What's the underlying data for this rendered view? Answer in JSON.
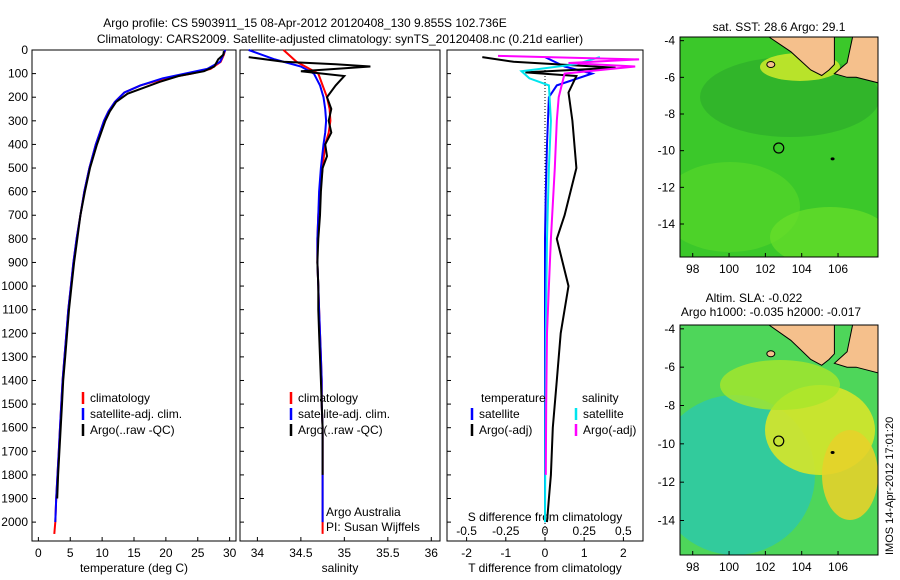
{
  "header": {
    "line1": "Argo profile: CS 5903911_15 08-Apr-2012 20120408_130 9.855S 102.736E",
    "line2": "Climatology: CARS2009. Satellite-adjusted climatology: synTS_20120408.nc (0.21d earlier)"
  },
  "footer_stamp": "IMOS 14-Apr-2012 17:01:20",
  "colors": {
    "climatology": "#ff0000",
    "satellite": "#0000ff",
    "argo": "#000000",
    "satellite_salinity": "#00e5ee",
    "argo_adj_salinity": "#ff00ff",
    "land": "#f5c08c"
  },
  "chart_data": [
    {
      "id": "temperature",
      "type": "line",
      "xlabel": "temperature (deg C)",
      "ylabel": "",
      "xlim": [
        -1,
        31
      ],
      "ylim": [
        2080,
        0
      ],
      "xticks": [
        0,
        5,
        10,
        15,
        20,
        25,
        30
      ],
      "yticks": [
        0,
        100,
        200,
        300,
        400,
        500,
        600,
        700,
        800,
        900,
        1000,
        1100,
        1200,
        1300,
        1400,
        1500,
        1600,
        1700,
        1800,
        1900,
        2000
      ],
      "legend": {
        "position": "lower-center",
        "entries": [
          "climatology",
          "satellite-adj. clim.",
          "Argo(..raw -QC)"
        ]
      },
      "series": [
        {
          "name": "climatology",
          "color": "#ff0000",
          "x": [
            29.3,
            29.1,
            28.6,
            27.0,
            24.0,
            20.0,
            16.0,
            13.5,
            12.0,
            11.0,
            10.3,
            9.0,
            8.0,
            7.2,
            6.6,
            6.0,
            5.5,
            5.1,
            4.7,
            4.4,
            4.1,
            3.8,
            3.6,
            3.4,
            3.2,
            3.0,
            2.8,
            2.65,
            2.5
          ],
          "y": [
            0,
            20,
            50,
            80,
            100,
            120,
            150,
            180,
            220,
            260,
            300,
            400,
            500,
            600,
            700,
            800,
            900,
            1000,
            1100,
            1200,
            1300,
            1400,
            1500,
            1600,
            1700,
            1800,
            1900,
            2000,
            2050
          ]
        },
        {
          "name": "satellite-adj. clim.",
          "color": "#0000ff",
          "x": [
            29.3,
            29.0,
            28.5,
            26.5,
            23.0,
            19.5,
            16.0,
            13.5,
            12.0,
            11.0,
            10.3,
            9.0,
            8.0,
            7.2,
            6.6,
            6.0,
            5.5,
            5.1,
            4.7,
            4.4,
            4.1,
            3.8,
            3.6,
            3.4,
            3.2,
            3.0,
            2.8,
            2.65
          ],
          "y": [
            0,
            20,
            50,
            80,
            100,
            120,
            150,
            180,
            220,
            260,
            300,
            400,
            500,
            600,
            700,
            800,
            900,
            1000,
            1100,
            1200,
            1300,
            1400,
            1500,
            1600,
            1700,
            1800,
            1900,
            2000
          ]
        },
        {
          "name": "Argo(..raw -QC)",
          "color": "#000000",
          "x": [
            29.1,
            29.0,
            28.2,
            27.6,
            26.0,
            22.0,
            19.0,
            16.5,
            14.0,
            12.2,
            11.2,
            10.5,
            9.2,
            8.1,
            7.3,
            6.6,
            6.1,
            5.6,
            5.2,
            4.8,
            4.5,
            4.2,
            3.9,
            3.7,
            3.5,
            3.3,
            3.1,
            2.95
          ],
          "y": [
            5,
            20,
            40,
            70,
            90,
            110,
            135,
            160,
            185,
            220,
            260,
            300,
            400,
            500,
            600,
            700,
            800,
            900,
            1000,
            1100,
            1200,
            1300,
            1400,
            1500,
            1600,
            1700,
            1800,
            1900
          ]
        }
      ]
    },
    {
      "id": "salinity",
      "type": "line",
      "xlabel": "salinity",
      "ylabel": "",
      "xlim": [
        33.8,
        36.1
      ],
      "ylim": [
        2080,
        0
      ],
      "xticks": [
        34,
        34.5,
        35,
        35.5,
        36
      ],
      "legend": {
        "position": "lower-center",
        "entries": [
          "climatology",
          "satellite-adj. clim.",
          "Argo(..raw -QC)"
        ]
      },
      "annotation": [
        "Argo Australia",
        "PI: Susan Wijffels"
      ],
      "series": [
        {
          "name": "climatology",
          "color": "#ff0000",
          "x": [
            34.3,
            34.45,
            34.6,
            34.7,
            34.75,
            34.8,
            34.83,
            34.84,
            34.82,
            34.78,
            34.75,
            34.72,
            34.7,
            34.69,
            34.69,
            34.7,
            34.71,
            34.72,
            34.73,
            34.74,
            34.74,
            34.75,
            34.75,
            34.75,
            34.75,
            34.75,
            34.75
          ],
          "y": [
            0,
            50,
            80,
            100,
            150,
            200,
            250,
            300,
            350,
            400,
            500,
            600,
            700,
            800,
            900,
            1000,
            1100,
            1200,
            1300,
            1400,
            1500,
            1600,
            1700,
            1800,
            1900,
            2000,
            2050
          ]
        },
        {
          "name": "satellite-adj. clim.",
          "color": "#0000ff",
          "x": [
            33.9,
            34.2,
            34.5,
            34.65,
            34.72,
            34.76,
            34.78,
            34.79,
            34.78,
            34.76,
            34.73,
            34.71,
            34.7,
            34.69,
            34.69,
            34.7,
            34.71,
            34.72,
            34.73,
            34.74,
            34.74,
            34.75,
            34.75,
            34.75,
            34.75,
            34.75
          ],
          "y": [
            0,
            40,
            70,
            100,
            150,
            200,
            250,
            300,
            350,
            400,
            500,
            600,
            700,
            800,
            900,
            1000,
            1100,
            1200,
            1300,
            1400,
            1500,
            1600,
            1700,
            1800,
            1900,
            2000
          ]
        },
        {
          "name": "Argo(..raw -QC)",
          "color": "#000000",
          "x": [
            33.9,
            34.3,
            34.9,
            35.3,
            34.5,
            35.0,
            34.9,
            34.8,
            34.85,
            34.82,
            34.85,
            34.78,
            34.8,
            34.75,
            34.73,
            34.72,
            34.7,
            34.69,
            34.7,
            34.7,
            34.71,
            34.72,
            34.73,
            34.74,
            34.75,
            34.75,
            34.75
          ],
          "y": [
            30,
            50,
            60,
            70,
            90,
            110,
            150,
            200,
            250,
            300,
            350,
            400,
            450,
            500,
            600,
            700,
            800,
            900,
            1000,
            1100,
            1200,
            1300,
            1400,
            1500,
            1600,
            1700,
            1800
          ]
        }
      ]
    },
    {
      "id": "difference",
      "type": "line",
      "xlabel": "T difference from climatology",
      "xlabel_top": "S difference from climatology",
      "ylabel": "",
      "xlim": [
        -2.5,
        2.5
      ],
      "ylim": [
        2080,
        0
      ],
      "xticks": [
        -2,
        -1,
        0,
        1,
        2
      ],
      "xticks_s": [
        "-0.5",
        "-0.25",
        "0",
        "0.25",
        "0.5"
      ],
      "xticks_s_values": [
        -0.5,
        -0.25,
        0,
        0.25,
        0.5
      ],
      "legend": {
        "position": "lower-center",
        "entries_temperature_title": "temperature",
        "entries_salinity_title": "salinity",
        "entries": [
          "satellite",
          "Argo(-adj)",
          "satellite",
          "Argo(-adj)"
        ]
      },
      "series": [
        {
          "name": "satellite",
          "group": "temperature",
          "color": "#0000ff",
          "x": [
            0,
            0.5,
            1.2,
            0.3,
            0.1,
            0.05,
            0.02,
            0.0,
            0.0,
            0.0,
            0.0
          ],
          "y": [
            30,
            70,
            100,
            150,
            200,
            400,
            600,
            800,
            1200,
            1600,
            2000
          ]
        },
        {
          "name": "Argo(-adj)",
          "group": "temperature",
          "color": "#000000",
          "x": [
            -1.6,
            -0.8,
            1.8,
            -0.5,
            0.8,
            0.6,
            0.7,
            0.8,
            0.5,
            0.3,
            0.6,
            0.4,
            0.3,
            0.2,
            0.15,
            0.1,
            0.05
          ],
          "y": [
            30,
            50,
            75,
            95,
            110,
            180,
            300,
            500,
            700,
            800,
            1000,
            1200,
            1400,
            1600,
            1800,
            1900,
            2000
          ]
        },
        {
          "name": "satellite",
          "group": "salinity",
          "color": "#00e5ee",
          "x": [
            1.4,
            0.8,
            -0.6,
            -0.4,
            0.1,
            0.15,
            0.1,
            0.05,
            0.02,
            0.01,
            0.0
          ],
          "y": [
            30,
            60,
            90,
            120,
            150,
            300,
            500,
            800,
            1200,
            1600,
            2000
          ]
        },
        {
          "name": "Argo(-adj)",
          "group": "salinity",
          "color": "#ff00ff",
          "x": [
            -1.2,
            2.4,
            0.6,
            2.3,
            0.5,
            0.35,
            0.3,
            0.25,
            0.15,
            0.1,
            0.05,
            0.03,
            0.02
          ],
          "y": [
            25,
            40,
            55,
            70,
            100,
            200,
            300,
            500,
            800,
            1000,
            1200,
            1500,
            1800
          ]
        }
      ]
    },
    {
      "id": "sst_map",
      "type": "heatmap",
      "title": "sat. SST: 28.6 Argo: 29.1",
      "xlim": [
        97.3,
        108.2
      ],
      "ylim": [
        -15.8,
        -3.8
      ],
      "xticks": [
        98,
        100,
        102,
        104,
        106
      ],
      "yticks": [
        -4,
        -6,
        -8,
        -10,
        -12,
        -14
      ],
      "marker": {
        "lon": 102.736,
        "lat": -9.855
      }
    },
    {
      "id": "sla_map",
      "type": "heatmap",
      "title_line1": "Altim. SLA: -0.022",
      "title_line2": "Argo h1000: -0.035 h2000: -0.017",
      "xlim": [
        97.3,
        108.2
      ],
      "ylim": [
        -15.8,
        -3.8
      ],
      "xticks": [
        98,
        100,
        102,
        104,
        106
      ],
      "yticks": [
        -4,
        -6,
        -8,
        -10,
        -12,
        -14
      ],
      "marker": {
        "lon": 102.736,
        "lat": -9.855
      }
    }
  ]
}
